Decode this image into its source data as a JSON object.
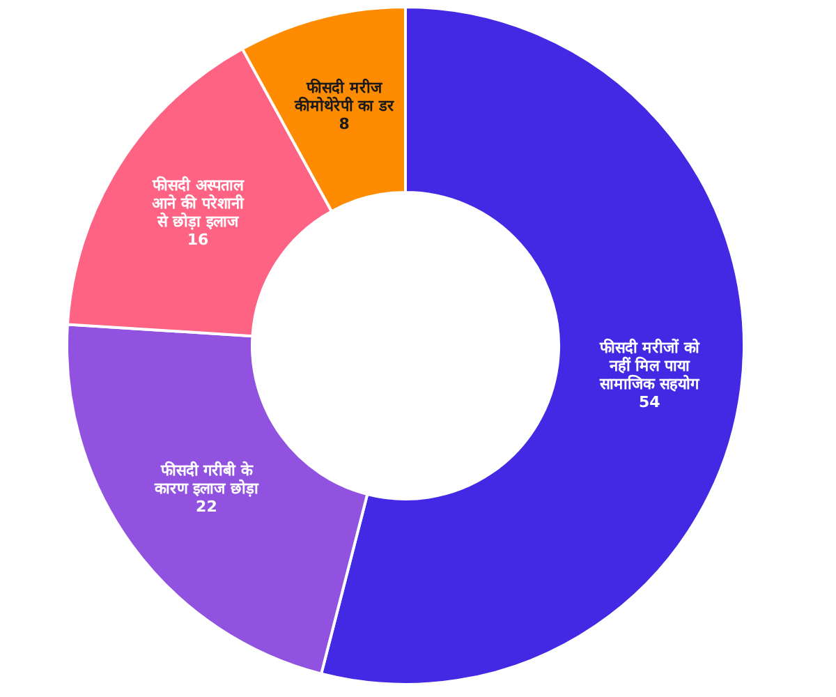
{
  "chart_data": {
    "type": "donut",
    "categories": [
      "फीसदी मरीजों को नहीं मिल पाया सामाजिक सहयोग",
      "फीसदी गरीबी के कारण इलाज छोड़ा",
      "फीसदी अस्पताल आने की परेशानी से छोड़ा इलाज",
      "फीसदी मरीज कीमोथेरेपी का डर"
    ],
    "values": [
      54,
      22,
      16,
      8
    ],
    "colors": [
      "#4329e4",
      "#9152e0",
      "#ff6384",
      "#ff8c00"
    ],
    "data_labels": true
  }
}
